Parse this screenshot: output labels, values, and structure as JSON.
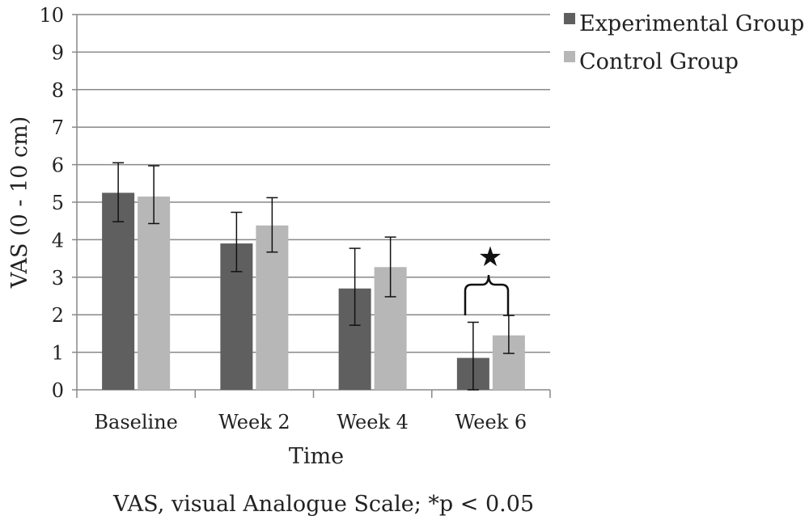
{
  "chart_data": {
    "type": "bar",
    "title": "",
    "xlabel": "Time",
    "ylabel": "VAS (0 - 10 cm)",
    "categories": [
      "Baseline",
      "Week 2",
      "Week 4",
      "Week 6"
    ],
    "ylim": [
      0,
      10
    ],
    "yticks": [
      "0",
      "1",
      "2",
      "3",
      "4",
      "5",
      "6",
      "7",
      "8",
      "9",
      "10"
    ],
    "grid": true,
    "legend_position": "top-right",
    "series": [
      {
        "name": "Experimental Group",
        "color": "#5f5f5f",
        "values": [
          5.25,
          3.9,
          2.7,
          0.85
        ],
        "error_low": [
          4.48,
          3.15,
          1.72,
          0.0
        ],
        "error_high": [
          6.05,
          4.73,
          3.77,
          1.8
        ]
      },
      {
        "name": "Control Group",
        "color": "#b7b7b7",
        "values": [
          5.15,
          4.38,
          3.27,
          1.45
        ],
        "error_low": [
          4.43,
          3.67,
          2.48,
          0.97
        ],
        "error_high": [
          5.97,
          5.12,
          4.07,
          1.98
        ]
      }
    ],
    "annotations": [
      {
        "text": "★",
        "category": "Week 6",
        "meaning": "significance"
      }
    ],
    "caption": "VAS, visual Analogue Scale; *p < 0.05"
  }
}
